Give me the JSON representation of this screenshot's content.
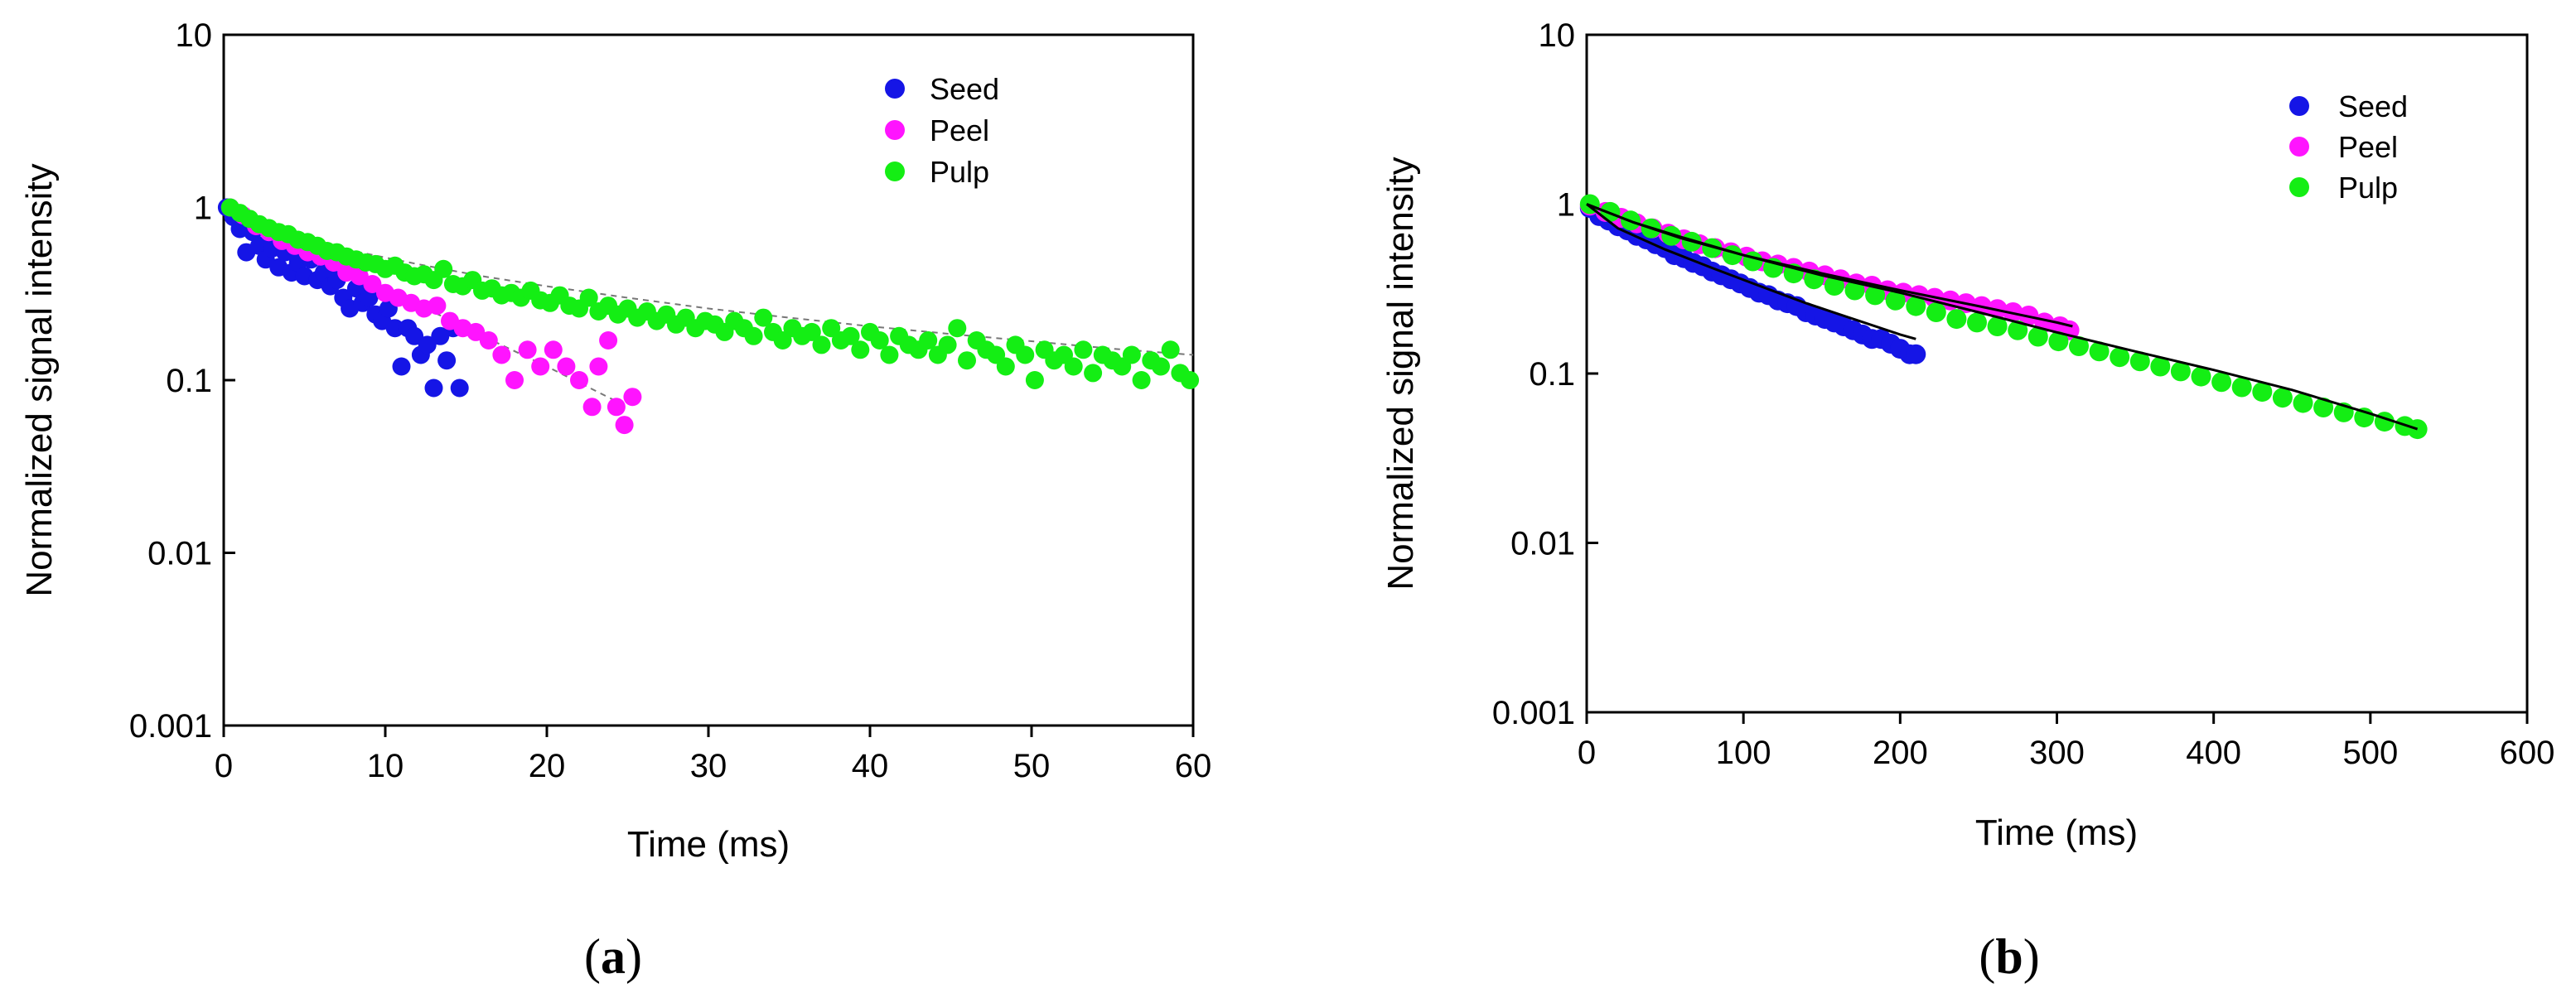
{
  "chart_data": [
    {
      "type": "scatter",
      "panel_label": "a",
      "xlabel": "Time (ms)",
      "ylabel": "Normalized signal intensity",
      "y_scale": "log",
      "xlim": [
        0,
        60
      ],
      "ylim": [
        0.001,
        10
      ],
      "x_ticks": [
        "0",
        "10",
        "20",
        "30",
        "40",
        "50",
        "60"
      ],
      "y_ticks": [
        "10",
        "1",
        "0.1",
        "0.01",
        "0.001"
      ],
      "legend_position": "top-right",
      "grid": false,
      "series": [
        {
          "name": "Seed",
          "color": "#1515e6",
          "x": [
            0.2,
            0.6,
            1.0,
            1.4,
            1.8,
            2.2,
            2.6,
            3.0,
            3.4,
            3.8,
            4.2,
            4.6,
            5.0,
            5.4,
            5.8,
            6.2,
            6.6,
            7.0,
            7.4,
            7.8,
            8.2,
            8.6,
            9.0,
            9.4,
            9.8,
            10.2,
            10.6,
            11.0,
            11.4,
            11.8,
            12.2,
            12.6,
            13.0,
            13.4,
            13.8,
            14.2,
            14.6
          ],
          "y": [
            1.0,
            0.88,
            0.75,
            0.55,
            0.72,
            0.6,
            0.5,
            0.58,
            0.45,
            0.55,
            0.42,
            0.48,
            0.4,
            0.5,
            0.38,
            0.42,
            0.35,
            0.38,
            0.3,
            0.26,
            0.34,
            0.28,
            0.3,
            0.24,
            0.22,
            0.26,
            0.2,
            0.12,
            0.2,
            0.18,
            0.14,
            0.16,
            0.09,
            0.18,
            0.13,
            0.2,
            0.09
          ]
        },
        {
          "name": "Peel",
          "color": "#ff14ff",
          "x": [
            0.4,
            1.2,
            2.0,
            2.8,
            3.6,
            4.4,
            5.2,
            6.0,
            6.8,
            7.6,
            8.4,
            9.2,
            10.0,
            10.8,
            11.6,
            12.4,
            13.2,
            14.0,
            14.8,
            15.6,
            16.4,
            17.2,
            18.0,
            18.8,
            19.6,
            20.4,
            21.2,
            22.0,
            22.8,
            23.2,
            23.8,
            24.3,
            24.8,
            25.3
          ],
          "y": [
            1.0,
            0.9,
            0.78,
            0.72,
            0.64,
            0.6,
            0.55,
            0.52,
            0.48,
            0.42,
            0.4,
            0.36,
            0.32,
            0.3,
            0.28,
            0.26,
            0.27,
            0.22,
            0.2,
            0.19,
            0.17,
            0.14,
            0.1,
            0.15,
            0.12,
            0.15,
            0.12,
            0.1,
            0.07,
            0.12,
            0.17,
            0.07,
            0.055,
            0.08
          ]
        },
        {
          "name": "Pulp",
          "color": "#14ee14",
          "x": [
            0.4,
            1.0,
            1.6,
            2.2,
            2.8,
            3.4,
            4.0,
            4.6,
            5.2,
            5.8,
            6.4,
            7.0,
            7.6,
            8.2,
            8.8,
            9.4,
            10.0,
            10.6,
            11.2,
            11.8,
            12.4,
            13.0,
            13.6,
            14.2,
            14.8,
            15.4,
            16.0,
            16.6,
            17.2,
            17.8,
            18.4,
            19.0,
            19.6,
            20.2,
            20.8,
            21.4,
            22.0,
            22.6,
            23.2,
            23.8,
            24.4,
            25.0,
            25.6,
            26.2,
            26.8,
            27.4,
            28.0,
            28.6,
            29.2,
            29.8,
            30.4,
            31.0,
            31.6,
            32.2,
            32.8,
            33.4,
            34.0,
            34.6,
            35.2,
            35.8,
            36.4,
            37.0,
            37.6,
            38.2,
            38.8,
            39.4,
            40.0,
            40.6,
            41.2,
            41.8,
            42.4,
            43.0,
            43.6,
            44.2,
            44.8,
            45.4,
            46.0,
            46.6,
            47.2,
            47.8,
            48.4,
            49.0,
            49.6,
            50.2,
            50.8,
            51.4,
            52.0,
            52.6,
            53.2,
            53.8,
            54.4,
            55.0,
            55.6,
            56.2,
            56.8,
            57.4,
            58.0,
            58.6,
            59.2,
            59.8
          ],
          "y": [
            1.0,
            0.93,
            0.86,
            0.8,
            0.76,
            0.72,
            0.7,
            0.65,
            0.63,
            0.6,
            0.56,
            0.55,
            0.52,
            0.5,
            0.48,
            0.47,
            0.44,
            0.46,
            0.42,
            0.4,
            0.41,
            0.38,
            0.44,
            0.36,
            0.35,
            0.38,
            0.33,
            0.34,
            0.31,
            0.32,
            0.3,
            0.33,
            0.29,
            0.28,
            0.31,
            0.27,
            0.26,
            0.3,
            0.25,
            0.27,
            0.24,
            0.26,
            0.23,
            0.25,
            0.22,
            0.24,
            0.21,
            0.23,
            0.2,
            0.22,
            0.21,
            0.19,
            0.22,
            0.2,
            0.18,
            0.23,
            0.19,
            0.17,
            0.2,
            0.18,
            0.19,
            0.16,
            0.2,
            0.17,
            0.18,
            0.15,
            0.19,
            0.17,
            0.14,
            0.18,
            0.16,
            0.15,
            0.17,
            0.14,
            0.16,
            0.2,
            0.13,
            0.17,
            0.15,
            0.14,
            0.12,
            0.16,
            0.14,
            0.1,
            0.15,
            0.13,
            0.14,
            0.12,
            0.15,
            0.11,
            0.14,
            0.13,
            0.12,
            0.14,
            0.1,
            0.13,
            0.12,
            0.15,
            0.11,
            0.1
          ]
        }
      ],
      "fit_lines": [
        {
          "series": "Pulp",
          "style": "dashed",
          "x": [
            0,
            2,
            5,
            8,
            12,
            16,
            20,
            25,
            30,
            35,
            40,
            45,
            50,
            55,
            60
          ],
          "y": [
            1.0,
            0.82,
            0.66,
            0.56,
            0.47,
            0.4,
            0.35,
            0.3,
            0.26,
            0.23,
            0.205,
            0.185,
            0.168,
            0.152,
            0.14
          ]
        },
        {
          "series": "Peel",
          "style": "dashed",
          "x": [
            0,
            5,
            10,
            15,
            20,
            25
          ],
          "y": [
            1.0,
            0.58,
            0.34,
            0.2,
            0.12,
            0.07
          ]
        }
      ]
    },
    {
      "type": "scatter",
      "panel_label": "b",
      "xlabel": "Time (ms)",
      "ylabel": "Normalized signal intensity",
      "y_scale": "log",
      "xlim": [
        0,
        600
      ],
      "ylim": [
        0.001,
        10
      ],
      "x_ticks": [
        "0",
        "100",
        "200",
        "300",
        "400",
        "500",
        "600"
      ],
      "y_ticks": [
        "10",
        "1",
        "0.1",
        "0.01",
        "0.001"
      ],
      "legend_position": "top-right",
      "grid": false,
      "series": [
        {
          "name": "Seed",
          "color": "#1515e6",
          "x": [
            2,
            8,
            14,
            20,
            26,
            32,
            38,
            44,
            50,
            56,
            62,
            68,
            74,
            80,
            86,
            92,
            98,
            104,
            110,
            116,
            122,
            128,
            134,
            140,
            146,
            152,
            158,
            164,
            170,
            176,
            182,
            188,
            194,
            200,
            206,
            210
          ],
          "y": [
            0.95,
            0.85,
            0.8,
            0.74,
            0.7,
            0.65,
            0.62,
            0.58,
            0.55,
            0.5,
            0.48,
            0.45,
            0.43,
            0.4,
            0.38,
            0.36,
            0.34,
            0.32,
            0.3,
            0.29,
            0.27,
            0.26,
            0.25,
            0.23,
            0.22,
            0.21,
            0.2,
            0.19,
            0.18,
            0.17,
            0.16,
            0.16,
            0.15,
            0.14,
            0.13,
            0.13
          ]
        },
        {
          "name": "Peel",
          "color": "#ff14ff",
          "x": [
            2,
            12,
            22,
            32,
            42,
            52,
            62,
            72,
            82,
            92,
            102,
            112,
            122,
            132,
            142,
            152,
            162,
            172,
            182,
            192,
            202,
            212,
            222,
            232,
            242,
            252,
            262,
            272,
            282,
            292,
            302,
            308
          ],
          "y": [
            0.98,
            0.9,
            0.83,
            0.77,
            0.72,
            0.67,
            0.62,
            0.58,
            0.55,
            0.52,
            0.49,
            0.46,
            0.44,
            0.42,
            0.4,
            0.38,
            0.36,
            0.34,
            0.33,
            0.31,
            0.3,
            0.29,
            0.28,
            0.27,
            0.26,
            0.25,
            0.24,
            0.23,
            0.22,
            0.2,
            0.19,
            0.18
          ]
        },
        {
          "name": "Pulp",
          "color": "#14ee14",
          "x": [
            2,
            15,
            28,
            41,
            54,
            67,
            80,
            93,
            106,
            119,
            132,
            145,
            158,
            171,
            184,
            197,
            210,
            223,
            236,
            249,
            262,
            275,
            288,
            301,
            314,
            327,
            340,
            353,
            366,
            379,
            392,
            405,
            418,
            431,
            444,
            457,
            470,
            483,
            496,
            509,
            522,
            530
          ],
          "y": [
            1.0,
            0.9,
            0.8,
            0.72,
            0.65,
            0.6,
            0.55,
            0.5,
            0.46,
            0.42,
            0.39,
            0.36,
            0.33,
            0.31,
            0.29,
            0.27,
            0.25,
            0.23,
            0.21,
            0.2,
            0.19,
            0.18,
            0.165,
            0.155,
            0.145,
            0.135,
            0.125,
            0.118,
            0.11,
            0.103,
            0.096,
            0.089,
            0.083,
            0.078,
            0.072,
            0.067,
            0.063,
            0.059,
            0.055,
            0.052,
            0.049,
            0.047
          ]
        }
      ],
      "fit_lines": [
        {
          "series": "Seed",
          "style": "solid",
          "x": [
            0,
            20,
            50,
            80,
            110,
            140,
            170,
            200,
            210
          ],
          "y": [
            1.0,
            0.72,
            0.54,
            0.42,
            0.33,
            0.26,
            0.21,
            0.17,
            0.16
          ]
        },
        {
          "series": "Peel",
          "style": "solid",
          "x": [
            0,
            30,
            60,
            100,
            150,
            200,
            250,
            300,
            310
          ],
          "y": [
            1.0,
            0.78,
            0.63,
            0.5,
            0.39,
            0.31,
            0.25,
            0.2,
            0.19
          ]
        },
        {
          "series": "Pulp",
          "style": "solid",
          "x": [
            0,
            30,
            60,
            100,
            150,
            200,
            250,
            300,
            350,
            400,
            450,
            500,
            530
          ],
          "y": [
            1.0,
            0.78,
            0.64,
            0.5,
            0.38,
            0.3,
            0.23,
            0.175,
            0.135,
            0.105,
            0.08,
            0.058,
            0.047
          ]
        }
      ]
    }
  ]
}
